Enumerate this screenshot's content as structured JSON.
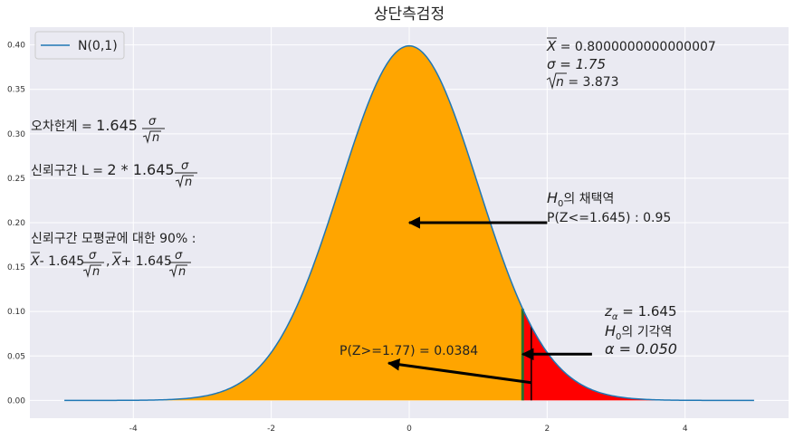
{
  "chart_data": {
    "type": "area",
    "title": "상단측검정",
    "xlabel": "",
    "ylabel": "",
    "xlim": [
      -5.5,
      5.5
    ],
    "ylim": [
      -0.02,
      0.42
    ],
    "grid": true,
    "legend_position": "top-left",
    "series": [
      {
        "name": "N(0,1)",
        "type": "line",
        "function": "standard-normal-pdf",
        "x_range": [
          -5,
          5
        ],
        "color": "#1f77b4"
      }
    ],
    "x_ticks": [
      -4,
      -2,
      0,
      2,
      4
    ],
    "x_tick_labels": [
      "-4",
      "-2",
      "0",
      "2",
      "4"
    ],
    "y_ticks": [
      0.0,
      0.05,
      0.1,
      0.15,
      0.2,
      0.25,
      0.3,
      0.35,
      0.4
    ],
    "y_tick_labels": [
      "0.00",
      "0.05",
      "0.10",
      "0.15",
      "0.20",
      "0.25",
      "0.30",
      "0.35",
      "0.40"
    ],
    "fill_regions": [
      {
        "from": -5,
        "to": 1.645,
        "color": "#ffa500"
      },
      {
        "from": 1.645,
        "to": 5,
        "color": "#ff0000"
      }
    ],
    "vertical_lines": [
      {
        "x": 1.645,
        "color": "#2a6f2a"
      },
      {
        "x": 1.77,
        "color": "#000000"
      }
    ],
    "arrows": [
      {
        "from": [
          2.0,
          0.2
        ],
        "to": [
          0.0,
          0.2
        ]
      },
      {
        "from": [
          2.65,
          0.052
        ],
        "to": [
          1.645,
          0.052
        ]
      },
      {
        "from": [
          1.77,
          0.02
        ],
        "to": [
          -0.3,
          0.042
        ]
      }
    ],
    "annotations": {
      "stats": {
        "xbar_label": "X",
        "xbar_value": " = 0.8000000000000007",
        "sigma_line": "σ = 1.75",
        "sqrtn_label": "n",
        "sqrtn_value": " = 3.873"
      },
      "margin_error": {
        "prefix": "오차한계 = ",
        "coef": "1.645"
      },
      "ci_length": {
        "prefix": "신뢰구간 L = ",
        "coef": "2 * 1.645"
      },
      "ci_interval": {
        "line1": "신뢰구간 모평균에 대한 90% :",
        "part1": "- 1.645",
        "part2": "+ 1.645"
      },
      "frac": {
        "num": "σ",
        "den": "n"
      },
      "xbar_symbol": "X",
      "acceptance": {
        "title": "의 채택역",
        "h": "H",
        "sub": "0",
        "prob": "P(Z<=1.645) : 0.95"
      },
      "rejection": {
        "z_alpha": "z",
        "z_alpha_sub": "α",
        "z_alpha_value": " = 1.645",
        "h": "H",
        "sub": "0",
        "title": "의 기각역",
        "alpha_line": "α = 0.050"
      },
      "pvalue": "P(Z>=1.77)   = 0.0384"
    }
  }
}
